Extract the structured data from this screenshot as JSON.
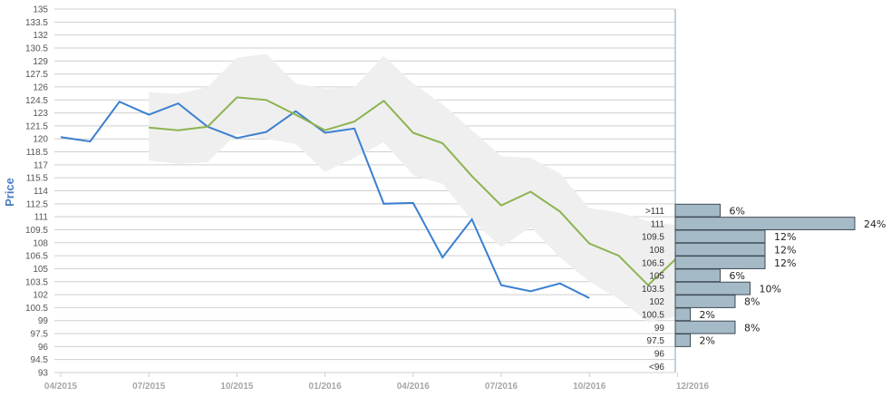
{
  "chart_data": {
    "type": "line",
    "ylabel": "Price",
    "xlabel": "",
    "ylim": [
      93,
      135
    ],
    "y_ticks": [
      "93",
      "94.5",
      "96",
      "97.5",
      "99",
      "100.5",
      "102",
      "103.5",
      "105",
      "106.5",
      "108",
      "109.5",
      "111",
      "112.5",
      "114",
      "115.5",
      "117",
      "118.5",
      "120",
      "121.5",
      "123",
      "124.5",
      "126",
      "127.5",
      "129",
      "130.5",
      "132",
      "133.5",
      "135"
    ],
    "x_ticks": [
      "04/2015",
      "07/2015",
      "10/2015",
      "01/2016",
      "04/2016",
      "07/2016",
      "10/2016",
      "12/2016"
    ],
    "grid": true,
    "series": [
      {
        "name": "",
        "color": "#3a7fd0",
        "x": [
          0,
          1,
          2,
          3,
          4,
          5,
          6,
          7,
          8,
          9,
          10,
          11,
          12,
          13,
          14,
          15,
          16,
          17,
          18
        ],
        "values": [
          120.2,
          119.7,
          124.3,
          122.8,
          124.1,
          121.4,
          120.1,
          120.8,
          123.2,
          120.7,
          121.2,
          112.5,
          112.6,
          106.3,
          110.7,
          103.1,
          102.4,
          103.3,
          101.6
        ]
      },
      {
        "name": "",
        "color": "#8db350",
        "x": [
          3,
          4,
          5,
          6,
          7,
          8,
          9,
          10,
          11,
          12,
          13,
          14,
          15,
          16,
          17,
          18,
          19,
          20,
          21
        ],
        "values": [
          121.3,
          121.0,
          121.4,
          124.8,
          124.5,
          122.8,
          121.0,
          122.0,
          124.4,
          120.7,
          119.5,
          115.7,
          112.3,
          113.9,
          111.6,
          107.9,
          106.5,
          103.1,
          106.3
        ]
      }
    ],
    "band": {
      "color": "#efefef",
      "x": [
        3,
        4,
        5,
        6,
        7,
        8,
        9,
        10,
        11,
        12,
        13,
        14,
        15,
        16,
        17,
        18,
        19,
        20,
        21
      ],
      "upper": [
        125.4,
        125.2,
        126.0,
        129.4,
        129.8,
        126.4,
        125.8,
        126.0,
        129.6,
        126.4,
        124.0,
        121.0,
        118.0,
        117.8,
        116.0,
        112.0,
        111.5,
        110.5,
        110.0
      ],
      "lower": [
        117.5,
        117.1,
        117.3,
        120.6,
        120.0,
        119.4,
        116.2,
        117.8,
        119.6,
        115.8,
        114.8,
        110.6,
        107.5,
        109.8,
        106.3,
        103.5,
        101.5,
        98.8,
        99.5
      ]
    },
    "histogram": {
      "color": "#a4bac7",
      "border": "#3f4a54",
      "bins": [
        {
          "label": ">111",
          "pct": 6,
          "text": "6%"
        },
        {
          "label": "111",
          "pct": 24,
          "text": "24%"
        },
        {
          "label": "109.5",
          "pct": 12,
          "text": "12%"
        },
        {
          "label": "108",
          "pct": 12,
          "text": "12%"
        },
        {
          "label": "106.5",
          "pct": 12,
          "text": "12%"
        },
        {
          "label": "105",
          "pct": 6,
          "text": "6%"
        },
        {
          "label": "103.5",
          "pct": 10,
          "text": "10%"
        },
        {
          "label": "102",
          "pct": 8,
          "text": "8%"
        },
        {
          "label": "100.5",
          "pct": 2,
          "text": "2%"
        },
        {
          "label": "99",
          "pct": 8,
          "text": "8%"
        },
        {
          "label": "97.5",
          "pct": 2,
          "text": "2%"
        },
        {
          "label": "96",
          "pct": 0,
          "text": ""
        },
        {
          "label": "<96",
          "pct": 0,
          "text": ""
        }
      ]
    }
  }
}
